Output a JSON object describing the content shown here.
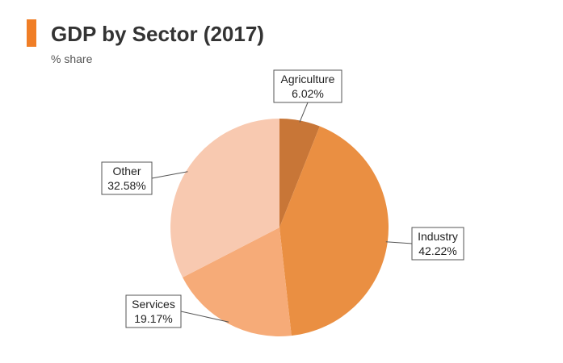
{
  "header": {
    "title": "GDP by Sector (2017)",
    "subtitle": "% share",
    "accent_color": "#f07e26"
  },
  "chart_data": {
    "type": "pie",
    "title": "GDP by Sector (2017)",
    "subtitle": "% share",
    "slices": [
      {
        "name": "Agriculture",
        "value": 6.02,
        "label": "6.02%",
        "color": "#c87637"
      },
      {
        "name": "Industry",
        "value": 42.22,
        "label": "42.22%",
        "color": "#ea8f42"
      },
      {
        "name": "Services",
        "value": 19.17,
        "label": "19.17%",
        "color": "#f6ab78"
      },
      {
        "name": "Other",
        "value": 32.58,
        "label": "32.58%",
        "color": "#f8c9b0"
      }
    ],
    "start_angle": "12 o'clock",
    "direction": "clockwise",
    "legend": "none"
  }
}
